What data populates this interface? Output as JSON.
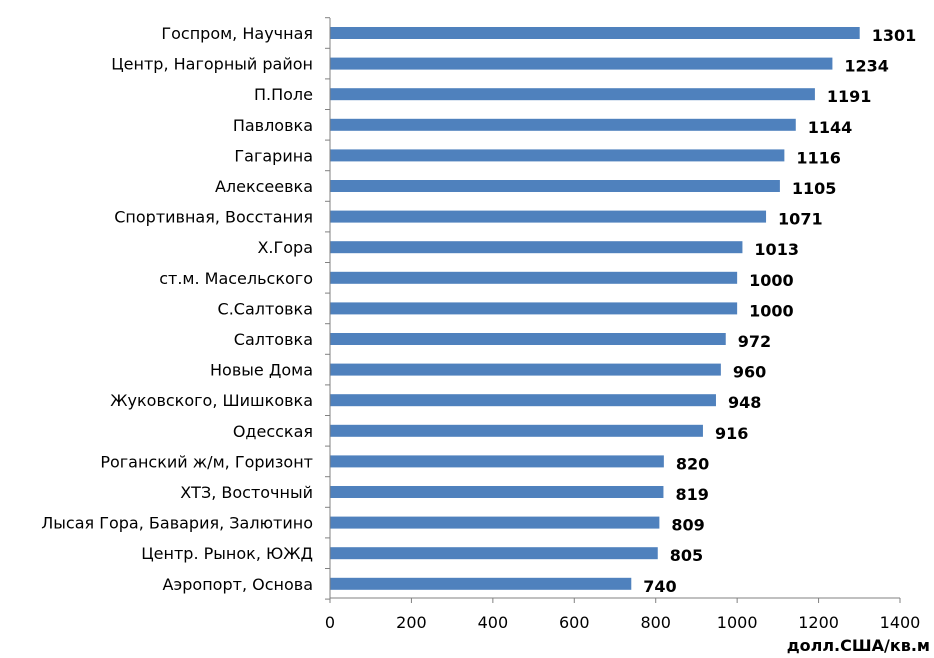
{
  "chart_data": {
    "type": "bar",
    "orientation": "horizontal",
    "categories": [
      "Госпром, Научная",
      "Центр, Нагорный район",
      "П.Поле",
      "Павловка",
      "Гагарина",
      "Алексеевка",
      "Спортивная, Восстания",
      "Х.Гора",
      "ст.м. Масельского",
      "С.Салтовка",
      "Салтовка",
      "Новые Дома",
      "Жуковского, Шишковка",
      "Одесская",
      "Роганский ж/м, Горизонт",
      "ХТЗ, Восточный",
      "Лысая Гора, Бавария, Залютино",
      "Центр. Рынок, ЮЖД",
      "Аэропорт, Основа"
    ],
    "values": [
      1301,
      1234,
      1191,
      1144,
      1116,
      1105,
      1071,
      1013,
      1000,
      1000,
      972,
      960,
      948,
      916,
      820,
      819,
      809,
      805,
      740
    ],
    "xlim": [
      0,
      1400
    ],
    "xticks": [
      "0",
      "200",
      "400",
      "600",
      "800",
      "1000",
      "1200",
      "1400"
    ],
    "unit_label": "долл.США/кв.м",
    "title": "",
    "xlabel": "",
    "ylabel": "",
    "grid": false,
    "bar_color": "#4F81BD",
    "data_labels": true
  }
}
